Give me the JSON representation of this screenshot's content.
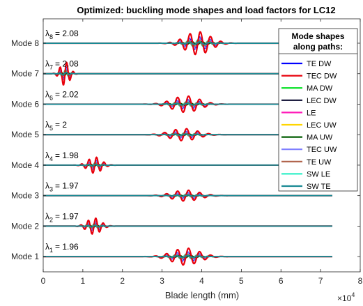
{
  "chart_data": {
    "type": "line",
    "title": "Optimized: buckling mode shapes and load factors for LC12",
    "xlabel": "Blade length (mm)",
    "x_exponent_label": "×10",
    "x_exponent_power": "4",
    "xlim": [
      0,
      80000
    ],
    "x_ticks": [
      0,
      10000,
      20000,
      30000,
      40000,
      50000,
      60000,
      70000,
      80000
    ],
    "x_tick_labels": [
      "0",
      "1",
      "2",
      "3",
      "4",
      "5",
      "6",
      "7",
      "8"
    ],
    "ylim": [
      0.5,
      8.8
    ],
    "y_categories": [
      "Mode 1",
      "Mode 2",
      "Mode 3",
      "Mode 4",
      "Mode 5",
      "Mode 6",
      "Mode 7",
      "Mode 8"
    ],
    "blade_end": 73000,
    "modes": [
      {
        "label": "Mode 1",
        "lambda_symbol": "λ",
        "lambda_sub": "1",
        "lambda_value": "= 1.96",
        "center": 36000,
        "half_width": 6000,
        "amplitude": 0.28,
        "wavelength": 2800
      },
      {
        "label": "Mode 2",
        "lambda_symbol": "λ",
        "lambda_sub": "2",
        "lambda_value": "= 1.97",
        "center": 12800,
        "half_width": 3000,
        "amplitude": 0.27,
        "wavelength": 1900
      },
      {
        "label": "Mode 3",
        "lambda_symbol": "λ",
        "lambda_sub": "3",
        "lambda_value": "= 1.97",
        "center": 36000,
        "half_width": 6000,
        "amplitude": 0.18,
        "wavelength": 2800
      },
      {
        "label": "Mode 4",
        "lambda_symbol": "λ",
        "lambda_sub": "4",
        "lambda_value": "= 1.98",
        "center": 13000,
        "half_width": 3000,
        "amplitude": 0.27,
        "wavelength": 1900
      },
      {
        "label": "Mode 5",
        "lambda_symbol": "λ",
        "lambda_sub": "5",
        "lambda_value": "= 2",
        "center": 35500,
        "half_width": 6000,
        "amplitude": 0.2,
        "wavelength": 2800
      },
      {
        "label": "Mode 6",
        "lambda_symbol": "λ",
        "lambda_sub": "6",
        "lambda_value": "= 2.02",
        "center": 36000,
        "half_width": 6000,
        "amplitude": 0.27,
        "wavelength": 2800
      },
      {
        "label": "Mode 7",
        "lambda_symbol": "λ",
        "lambda_sub": "7",
        "lambda_value": "= 2.08",
        "center": 5500,
        "half_width": 2000,
        "amplitude": 0.4,
        "wavelength": 1700
      },
      {
        "label": "Mode 8",
        "lambda_symbol": "λ",
        "lambda_sub": "8",
        "lambda_value": "= 2.08",
        "center": 39000,
        "half_width": 5500,
        "amplitude": 0.38,
        "wavelength": 2600
      }
    ],
    "legend": {
      "title_line1": "Mode shapes",
      "title_line2": "along paths:",
      "placement": "top-right",
      "entries": [
        {
          "name": "TE DW",
          "color": "#0000ff"
        },
        {
          "name": "TEC DW",
          "color": "#e8000b"
        },
        {
          "name": "MA DW",
          "color": "#00e020"
        },
        {
          "name": "LEC DW",
          "color": "#0b0b30"
        },
        {
          "name": "LE",
          "color": "#ff1ab8"
        },
        {
          "name": "LEC UW",
          "color": "#ffd500"
        },
        {
          "name": "MA UW",
          "color": "#005c00"
        },
        {
          "name": "TEC UW",
          "color": "#8080ff"
        },
        {
          "name": "TE UW",
          "color": "#b0624a"
        },
        {
          "name": "SW LE",
          "color": "#33f0c8"
        },
        {
          "name": "SW TE",
          "color": "#1a8a94"
        }
      ]
    },
    "grid": false
  }
}
